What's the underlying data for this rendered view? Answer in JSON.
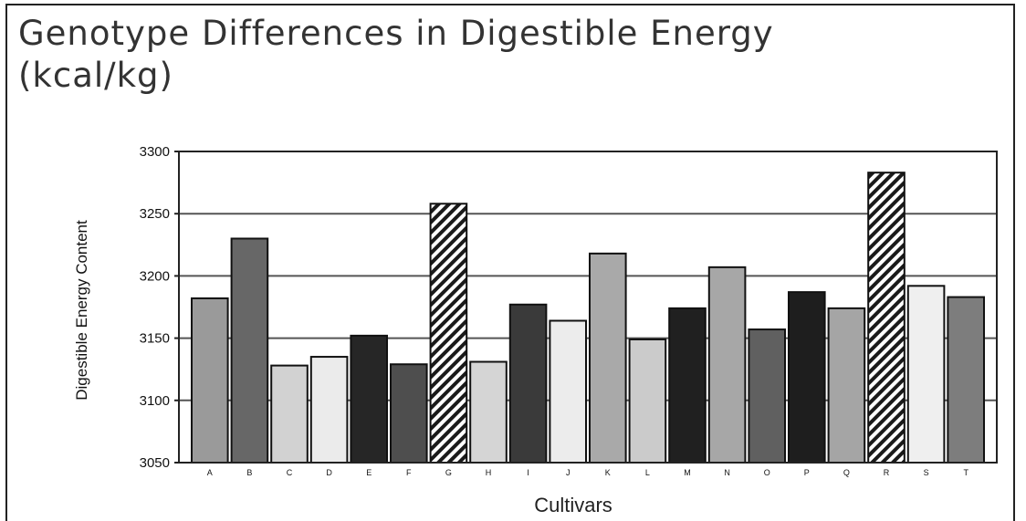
{
  "chart_data": {
    "type": "bar",
    "title": "Genotype Differences in Digestible Energy (kcal/kg)",
    "xlabel": "Cultivars",
    "ylabel": "Digestible Energy Content",
    "ylim": [
      3050,
      3300
    ],
    "yticks": [
      "3050",
      "3100",
      "3150",
      "3200",
      "3250",
      "3300"
    ],
    "grid": "horizontal",
    "categories": [
      "A",
      "B",
      "C",
      "D",
      "E",
      "F",
      "G",
      "H",
      "I",
      "J",
      "K",
      "L",
      "M",
      "N",
      "O",
      "P",
      "Q",
      "R",
      "S",
      "T"
    ],
    "values": [
      3182,
      3230,
      3128,
      3135,
      3152,
      3129,
      3258,
      3131,
      3177,
      3164,
      3218,
      3149,
      3174,
      3207,
      3157,
      3187,
      3174,
      3283,
      3192,
      3183
    ],
    "bar_fills": [
      "#9a9a9a",
      "#676767",
      "#d2d2d2",
      "#ebebeb",
      "#262626",
      "#4e4e4e",
      "hatch",
      "#d5d5d5",
      "#3a3a3a",
      "#ececec",
      "#a9a9a9",
      "#cbcbcb",
      "#202020",
      "#a7a7a7",
      "#606060",
      "#1e1e1e",
      "#a5a5a5",
      "hatch",
      "#efefef",
      "#7d7d7d"
    ]
  }
}
